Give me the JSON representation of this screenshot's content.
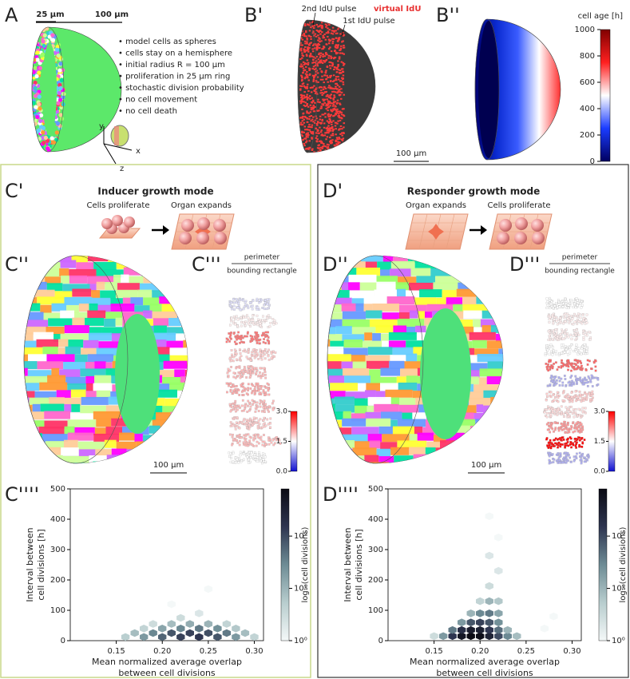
{
  "figure": {
    "A": {
      "label": "A",
      "scalebar_labels": [
        "25 µm",
        "100 µm"
      ],
      "bullets": [
        "• model cells as spheres",
        "• cells stay on a hemisphere",
        "• initial radius R = 100 µm",
        "• proliferation in 25 µm ring",
        "• stochastic division probability",
        "• no cell movement",
        "• no cell death"
      ],
      "axis_labels": [
        "y",
        "x",
        "z"
      ]
    },
    "B1": {
      "label": "B'",
      "pulses": [
        "2nd IdU pulse",
        "1st IdU pulse"
      ],
      "legend": "virtual IdU",
      "scalebar": "100 µm"
    },
    "B2": {
      "label": "B''",
      "colorbar": {
        "title": "cell age [h]",
        "lim": [
          0,
          1000
        ],
        "ticks": [
          0,
          200,
          400,
          600,
          800,
          1000
        ]
      }
    },
    "C": {
      "label": "C'",
      "title": "Inducer growth mode",
      "steps": [
        "Cells proliferate",
        "Organ expands"
      ],
      "label2": "C''",
      "scalebar": "100 µm",
      "label3": "C'''",
      "ratio_top": "perimeter",
      "ratio_bottom": "bounding rectangle",
      "clone_ratios": [
        1.3,
        1.6,
        2.3,
        1.8,
        1.9,
        2.0,
        1.9,
        1.8,
        1.9,
        1.5
      ],
      "colorbar": {
        "lim": [
          0,
          3
        ],
        "ticks": [
          {
            "value": 3,
            "label": "3.0"
          },
          1.5,
          {
            "value": 0,
            "label": "0.0"
          }
        ]
      },
      "label4": "C''''"
    },
    "D": {
      "label": "D'",
      "title": "Responder growth mode",
      "steps": [
        "Organ expands",
        "Cells proliferate"
      ],
      "label2": "D''",
      "scalebar": "100 µm",
      "label3": "D'''",
      "ratio_top": "perimeter",
      "ratio_bottom": "bounding rectangle",
      "clone_ratios": [
        1.5,
        1.6,
        1.6,
        1.5,
        2.4,
        1.0,
        1.8,
        1.7,
        2.1,
        3.0,
        1.0
      ],
      "colorbar": {
        "lim": [
          0,
          3
        ],
        "ticks": [
          {
            "value": 3,
            "label": "3.0"
          },
          1.5,
          {
            "value": 0,
            "label": "0.0"
          }
        ]
      },
      "label4": "D''''"
    }
  },
  "chart_data": [
    {
      "type": "hexbin",
      "xlabel": [
        "Mean normalized average overlap",
        "between cell divisions"
      ],
      "ylabel": [
        "Interval between",
        "cell divisions [h]"
      ],
      "xlim": [
        0.1,
        0.31
      ],
      "xticks": [
        0.15,
        {
          "value": 0.2,
          "label": "0.20"
        },
        0.25,
        {
          "value": 0.3,
          "label": "0.30"
        }
      ],
      "ylim": [
        0,
        500
      ],
      "yticks": [
        0,
        100,
        200,
        300,
        400,
        500
      ],
      "x": [
        0.16,
        0.18,
        0.2,
        0.22,
        0.24,
        0.26,
        0.28,
        0.3,
        0.17,
        0.19,
        0.21,
        0.23,
        0.25,
        0.27,
        0.29,
        0.18,
        0.2,
        0.22,
        0.24,
        0.26,
        0.28,
        0.19,
        0.21,
        0.23,
        0.25,
        0.27,
        0.22,
        0.24,
        0.21,
        0.25
      ],
      "y": [
        12,
        12,
        12,
        12,
        12,
        12,
        12,
        12,
        25,
        25,
        25,
        25,
        25,
        25,
        25,
        40,
        40,
        40,
        40,
        40,
        40,
        55,
        55,
        55,
        55,
        55,
        75,
        90,
        120,
        170
      ],
      "counts": [
        5,
        20,
        60,
        120,
        150,
        80,
        20,
        4,
        8,
        30,
        80,
        120,
        90,
        40,
        8,
        4,
        15,
        30,
        40,
        25,
        6,
        3,
        8,
        12,
        10,
        4,
        3,
        2,
        1,
        1
      ],
      "colorbar": {
        "label": "log₁₀(cell divisions)",
        "log": true,
        "lim": [
          1,
          800
        ],
        "ticks": [
          {
            "value": 1,
            "label": "10⁰"
          },
          {
            "value": 10,
            "label": "10¹"
          },
          {
            "value": 100,
            "label": "10²"
          }
        ]
      }
    },
    {
      "type": "hexbin",
      "xlabel": [
        "Mean normalized average overlap",
        "between cell divisions"
      ],
      "ylabel": [
        "Interval between",
        "cell divisions [h]"
      ],
      "xlim": [
        0.1,
        0.31
      ],
      "xticks": [
        0.15,
        {
          "value": 0.2,
          "label": "0.20"
        },
        0.25,
        {
          "value": 0.3,
          "label": "0.30"
        }
      ],
      "ylim": [
        0,
        500
      ],
      "yticks": [
        0,
        100,
        200,
        300,
        400,
        500
      ],
      "x": [
        0.16,
        0.17,
        0.18,
        0.19,
        0.2,
        0.21,
        0.22,
        0.23,
        0.24,
        0.17,
        0.18,
        0.19,
        0.2,
        0.21,
        0.22,
        0.23,
        0.18,
        0.19,
        0.2,
        0.21,
        0.22,
        0.19,
        0.2,
        0.21,
        0.22,
        0.2,
        0.21,
        0.22,
        0.21,
        0.22,
        0.21,
        0.22,
        0.21,
        0.15,
        0.27,
        0.28
      ],
      "y": [
        15,
        15,
        15,
        15,
        15,
        15,
        15,
        15,
        15,
        35,
        35,
        35,
        35,
        35,
        35,
        35,
        60,
        60,
        60,
        60,
        60,
        90,
        90,
        90,
        90,
        130,
        130,
        130,
        180,
        230,
        280,
        340,
        410,
        15,
        40,
        80
      ],
      "counts": [
        20,
        150,
        500,
        800,
        700,
        300,
        100,
        30,
        8,
        40,
        200,
        400,
        350,
        150,
        50,
        10,
        20,
        80,
        120,
        80,
        25,
        10,
        30,
        40,
        15,
        4,
        10,
        6,
        3,
        2,
        2,
        1,
        1,
        3,
        1,
        1
      ],
      "colorbar": {
        "label": "log₁₀(cell divisions)",
        "log": true,
        "lim": [
          1,
          800
        ],
        "ticks": [
          {
            "value": 1,
            "label": "10⁰"
          },
          {
            "value": 10,
            "label": "10¹"
          },
          {
            "value": 100,
            "label": "10²"
          }
        ]
      }
    }
  ]
}
